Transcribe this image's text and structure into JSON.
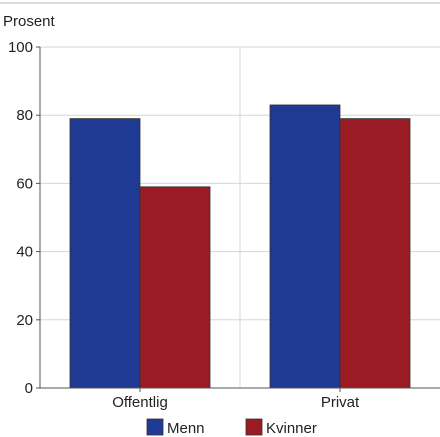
{
  "chart_data": {
    "type": "bar",
    "ylabel": "Prosent",
    "ylim": [
      0,
      100
    ],
    "yticks": [
      0,
      20,
      40,
      60,
      80,
      100
    ],
    "categories": [
      "Offentlig",
      "Privat"
    ],
    "series": [
      {
        "name": "Menn",
        "color": "#1f3a93",
        "values": [
          79,
          83
        ]
      },
      {
        "name": "Kvinner",
        "color": "#9b1b24",
        "values": [
          59,
          79
        ]
      }
    ],
    "grid": true,
    "legend_position": "bottom"
  }
}
